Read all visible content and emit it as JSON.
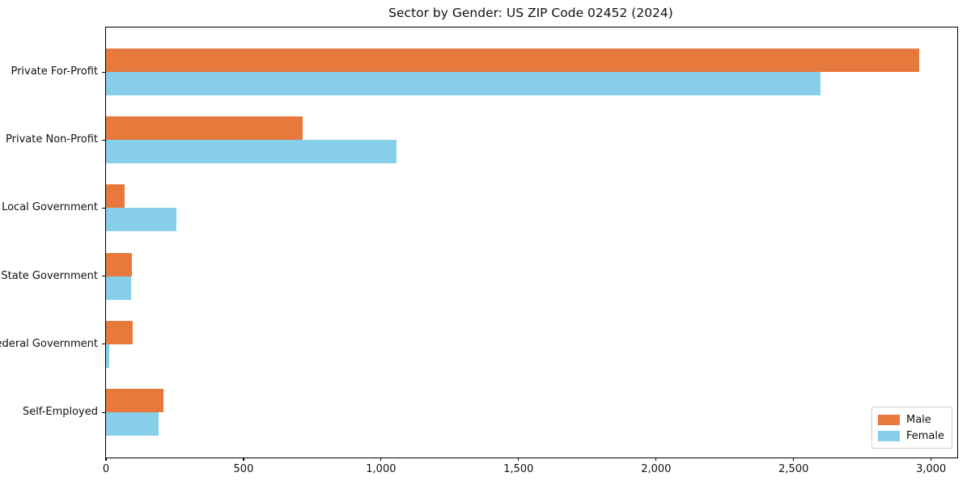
{
  "chart_data": {
    "type": "bar",
    "orientation": "horizontal",
    "title": "Sector by Gender: US ZIP Code 02452 (2024)",
    "categories": [
      "Private For-Profit",
      "Private Non-Profit",
      "Local Government",
      "State Government",
      "Federal Government",
      "Self-Employed"
    ],
    "series": [
      {
        "name": "Male",
        "color": "#E8793D",
        "values": [
          2956,
          715,
          68,
          95,
          97,
          209
        ]
      },
      {
        "name": "Female",
        "color": "#87CEEB",
        "values": [
          2598,
          1055,
          255,
          92,
          12,
          190
        ]
      }
    ],
    "xlabel": "",
    "ylabel": "",
    "xlim": [
      0,
      3095
    ],
    "x_ticks": [
      0,
      500,
      1000,
      1500,
      2000,
      2500,
      3000
    ],
    "x_tick_labels": [
      "0",
      "500",
      "1,000",
      "1,500",
      "2,000",
      "2,500",
      "3,000"
    ],
    "grid": false,
    "legend": {
      "position": "lower right",
      "entries": [
        {
          "label": "Male",
          "color": "#E8793D"
        },
        {
          "label": "Female",
          "color": "#87CEEB"
        }
      ]
    }
  }
}
